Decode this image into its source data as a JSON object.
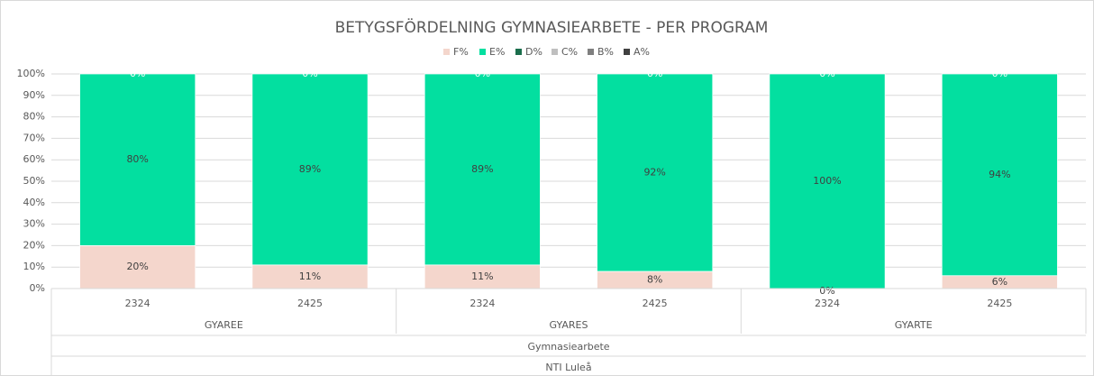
{
  "chart_data": {
    "type": "bar",
    "stacked": true,
    "title": "BETYGSFÖRDELNING GYMNASIEARBETE - PER PROGRAM",
    "groups": [
      {
        "name": "GYAREE",
        "categories": [
          "2324",
          "2425"
        ]
      },
      {
        "name": "GYARES",
        "categories": [
          "2324",
          "2425"
        ]
      },
      {
        "name": "GYARTE",
        "categories": [
          "2324",
          "2425"
        ]
      }
    ],
    "outer_levels": [
      "Gymnasiearbete",
      "NTI Luleå"
    ],
    "series": [
      {
        "name": "F%",
        "color": "#f4d6cc",
        "values": [
          20,
          11,
          11,
          8,
          0,
          6
        ],
        "value_labels": [
          "20%",
          "11%",
          "11%",
          "8%",
          "0%",
          "6%"
        ]
      },
      {
        "name": "E%",
        "color": "#03dfa0",
        "values": [
          80,
          89,
          89,
          92,
          100,
          94
        ],
        "value_labels": [
          "80%",
          "89%",
          "89%",
          "92%",
          "100%",
          "94%"
        ]
      },
      {
        "name": "D%",
        "color": "#1b6e4c",
        "values": [
          0,
          0,
          0,
          0,
          0,
          0
        ],
        "value_labels": [
          "0%",
          "0%",
          "0%",
          "0%",
          "0%",
          "0%"
        ]
      },
      {
        "name": "C%",
        "color": "#bfbfbf",
        "values": [
          0,
          0,
          0,
          0,
          0,
          0
        ]
      },
      {
        "name": "B%",
        "color": "#7f7f7f",
        "values": [
          0,
          0,
          0,
          0,
          0,
          0
        ]
      },
      {
        "name": "A%",
        "color": "#404040",
        "values": [
          0,
          0,
          0,
          0,
          0,
          0
        ]
      }
    ],
    "ylim": [
      0,
      100
    ],
    "yticks": [
      {
        "value": 0,
        "label": "0%"
      },
      {
        "value": 10,
        "label": "10%"
      },
      {
        "value": 20,
        "label": "20%"
      },
      {
        "value": 30,
        "label": "30%"
      },
      {
        "value": 40,
        "label": "40%"
      },
      {
        "value": 50,
        "label": "50%"
      },
      {
        "value": 60,
        "label": "60%"
      },
      {
        "value": 70,
        "label": "70%"
      },
      {
        "value": 80,
        "label": "80%"
      },
      {
        "value": 90,
        "label": "90%"
      },
      {
        "value": 100,
        "label": "100%"
      }
    ],
    "grid": true,
    "legend": "top"
  }
}
